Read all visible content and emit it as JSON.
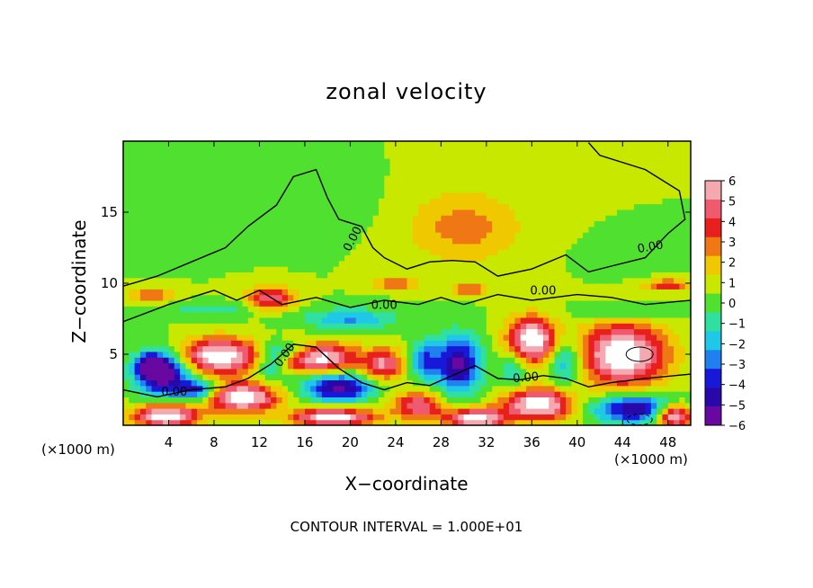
{
  "chart_data": {
    "type": "heatmap",
    "title": "zonal velocity",
    "xlabel": "X−coordinate",
    "ylabel": "Z−coordinate",
    "x_unit_left": "(×1000 m)",
    "x_unit_right": "(×1000 m)",
    "xlim": [
      0,
      50
    ],
    "ylim": [
      0,
      20
    ],
    "x_ticks": [
      4,
      8,
      12,
      16,
      20,
      24,
      28,
      32,
      36,
      40,
      44,
      48
    ],
    "y_ticks": [
      5,
      10,
      15
    ],
    "colorbar": {
      "labels": [
        "6",
        "5",
        "4",
        "3",
        "2",
        "1",
        "0",
        "−1",
        "−2",
        "−3",
        "−4",
        "−5",
        "−6"
      ],
      "values": [
        6,
        5,
        4,
        3,
        2,
        1,
        0,
        -1,
        -2,
        -3,
        -4,
        -5,
        -6
      ],
      "colors": [
        "#f4a8b0",
        "#f05a6e",
        "#e8201c",
        "#f07814",
        "#f0c800",
        "#c8e800",
        "#50e030",
        "#30e0a0",
        "#20c8e8",
        "#2080f0",
        "#1818d8",
        "#2808a8",
        "#6808a0"
      ]
    },
    "background_value": 0.5,
    "blobs": [
      {
        "x": 3.5,
        "z": 3.7,
        "rx": 2.3,
        "rz": 1.5,
        "v": -6
      },
      {
        "x": 2.5,
        "z": 4.2,
        "rx": 1.2,
        "rz": 0.8,
        "v": -4
      },
      {
        "x": 8.5,
        "z": 4.9,
        "rx": 3.5,
        "rz": 1.2,
        "v": 6
      },
      {
        "x": 10.5,
        "z": 2.0,
        "rx": 3.0,
        "rz": 1.0,
        "v": 6
      },
      {
        "x": 3.8,
        "z": 0.7,
        "rx": 2.8,
        "rz": 0.8,
        "v": 6
      },
      {
        "x": 6.5,
        "z": 2.5,
        "rx": 1.8,
        "rz": 0.7,
        "v": -4
      },
      {
        "x": 13.0,
        "z": 4.5,
        "rx": 1.5,
        "rz": 1.2,
        "v": -3
      },
      {
        "x": 17.0,
        "z": 4.8,
        "rx": 3.5,
        "rz": 1.0,
        "v": 6
      },
      {
        "x": 19.0,
        "z": 2.7,
        "rx": 3.0,
        "rz": 1.0,
        "v": -5
      },
      {
        "x": 15.0,
        "z": 5.2,
        "rx": 2.0,
        "rz": 0.7,
        "v": -3
      },
      {
        "x": 23.0,
        "z": 4.3,
        "rx": 1.8,
        "rz": 1.1,
        "v": 4
      },
      {
        "x": 26.5,
        "z": 4.6,
        "rx": 1.3,
        "rz": 1.3,
        "v": -3
      },
      {
        "x": 29.5,
        "z": 4.3,
        "rx": 2.0,
        "rz": 2.0,
        "v": -5
      },
      {
        "x": 26.0,
        "z": 1.4,
        "rx": 2.3,
        "rz": 1.0,
        "v": 4
      },
      {
        "x": 31.0,
        "z": 0.5,
        "rx": 2.5,
        "rz": 0.7,
        "v": 6
      },
      {
        "x": 36.0,
        "z": 6.0,
        "rx": 2.1,
        "rz": 1.6,
        "v": 6
      },
      {
        "x": 36.5,
        "z": 1.5,
        "rx": 3.0,
        "rz": 1.1,
        "v": 6
      },
      {
        "x": 34.5,
        "z": 4.0,
        "rx": 1.2,
        "rz": 1.5,
        "v": -2
      },
      {
        "x": 39.0,
        "z": 4.5,
        "rx": 1.6,
        "rz": 1.6,
        "v": -3
      },
      {
        "x": 44.0,
        "z": 5.0,
        "rx": 3.8,
        "rz": 2.2,
        "v": 6
      },
      {
        "x": 45.0,
        "z": 1.2,
        "rx": 3.5,
        "rz": 1.0,
        "v": -5
      },
      {
        "x": 48.5,
        "z": 0.7,
        "rx": 1.5,
        "rz": 0.8,
        "v": 6
      },
      {
        "x": 18.5,
        "z": 0.6,
        "rx": 3.5,
        "rz": 0.6,
        "v": 6
      },
      {
        "x": 13.0,
        "z": 9.0,
        "rx": 2.0,
        "rz": 0.8,
        "v": 4
      },
      {
        "x": 24.0,
        "z": 10.0,
        "rx": 1.8,
        "rz": 0.4,
        "v": 3
      },
      {
        "x": 2.5,
        "z": 9.2,
        "rx": 2.0,
        "rz": 0.4,
        "v": 3
      },
      {
        "x": 30.5,
        "z": 9.6,
        "rx": 1.5,
        "rz": 0.4,
        "v": 3
      },
      {
        "x": 48.0,
        "z": 9.9,
        "rx": 2.0,
        "rz": 0.4,
        "v": 3
      },
      {
        "x": 8.0,
        "z": 8.2,
        "rx": 3.5,
        "rz": 0.5,
        "v": -1.5
      },
      {
        "x": 20.0,
        "z": 7.5,
        "rx": 4.0,
        "rz": 0.7,
        "v": -2.5
      },
      {
        "x": 44.0,
        "z": 8.0,
        "rx": 4.0,
        "rz": 0.6,
        "v": -1.5
      },
      {
        "x": 14.0,
        "z": 15.5,
        "rx": 7.0,
        "rz": 2.0,
        "v": -0.7
      },
      {
        "x": 30.0,
        "z": 14.0,
        "rx": 5.0,
        "rz": 2.5,
        "v": 2
      },
      {
        "x": 44.0,
        "z": 12.0,
        "rx": 3.0,
        "rz": 1.2,
        "v": -0.5
      }
    ],
    "contours": [
      {
        "label": "0.00",
        "label_at": [
          20.5,
          13.0
        ],
        "points": [
          [
            0,
            9.8
          ],
          [
            3,
            10.5
          ],
          [
            6,
            11.5
          ],
          [
            9,
            12.5
          ],
          [
            11,
            14.0
          ],
          [
            13.5,
            15.5
          ],
          [
            15,
            17.5
          ],
          [
            17,
            18.0
          ],
          [
            18,
            16.0
          ],
          [
            19,
            14.5
          ],
          [
            21,
            14.0
          ],
          [
            22,
            12.5
          ],
          [
            23,
            11.8
          ],
          [
            25,
            11.0
          ],
          [
            27,
            11.5
          ],
          [
            29,
            11.6
          ],
          [
            31,
            11.5
          ],
          [
            33,
            10.5
          ],
          [
            36,
            11.0
          ],
          [
            39,
            12.0
          ],
          [
            41,
            10.8
          ],
          [
            43,
            11.2
          ],
          [
            46,
            11.8
          ],
          [
            48,
            13.5
          ],
          [
            49.5,
            14.5
          ],
          [
            49,
            16.5
          ],
          [
            46,
            18.0
          ],
          [
            42,
            19.0
          ],
          [
            41,
            19.9
          ]
        ]
      },
      {
        "label": "0.00",
        "label_at": [
          47.0,
          12.3
        ],
        "points": [
          [
            0,
            7.3
          ],
          [
            4,
            8.5
          ],
          [
            8,
            9.5
          ],
          [
            10,
            8.8
          ],
          [
            12,
            9.5
          ],
          [
            14,
            8.5
          ],
          [
            17,
            9.0
          ],
          [
            20,
            8.3
          ],
          [
            23,
            8.8
          ],
          [
            26,
            8.5
          ],
          [
            28,
            9.0
          ],
          [
            30,
            8.5
          ],
          [
            33,
            9.2
          ],
          [
            36,
            8.8
          ],
          [
            40,
            9.2
          ],
          [
            43,
            9.0
          ],
          [
            46,
            8.5
          ],
          [
            50,
            8.8
          ]
        ]
      },
      {
        "label": "0.00",
        "label_at": [
          3.5,
          2.2
        ],
        "points": [
          [
            0,
            2.5
          ],
          [
            3,
            2.0
          ],
          [
            6,
            2.5
          ],
          [
            9,
            2.7
          ],
          [
            11,
            3.3
          ],
          [
            13,
            4.3
          ],
          [
            15,
            5.7
          ],
          [
            17,
            5.5
          ],
          [
            19,
            4.0
          ],
          [
            21,
            3.0
          ],
          [
            23,
            2.5
          ],
          [
            25,
            3.0
          ],
          [
            27,
            2.8
          ],
          [
            29,
            3.5
          ],
          [
            31,
            4.2
          ],
          [
            33,
            3.3
          ],
          [
            35,
            3.2
          ],
          [
            37,
            3.5
          ],
          [
            39,
            3.3
          ],
          [
            41,
            2.7
          ],
          [
            43,
            3.0
          ],
          [
            46,
            3.3
          ],
          [
            50,
            3.6
          ]
        ]
      }
    ],
    "contour_labels": [
      {
        "text": "0.00",
        "x": 20.5,
        "z": 13.0,
        "angle": -62
      },
      {
        "text": "0.00",
        "x": 46.5,
        "z": 12.3,
        "angle": -10
      },
      {
        "text": "0.00",
        "x": 37.0,
        "z": 9.2,
        "angle": 0
      },
      {
        "text": "0.00",
        "x": 23.0,
        "z": 8.2,
        "angle": 0
      },
      {
        "text": "0.00",
        "x": 14.5,
        "z": 4.8,
        "angle": -55
      },
      {
        "text": "0.00",
        "x": 35.5,
        "z": 3.1,
        "angle": -5
      },
      {
        "text": "0.00",
        "x": 4.5,
        "z": 2.1,
        "angle": 0
      }
    ]
  },
  "footer": "CONTOUR INTERVAL = 1.000E+01"
}
